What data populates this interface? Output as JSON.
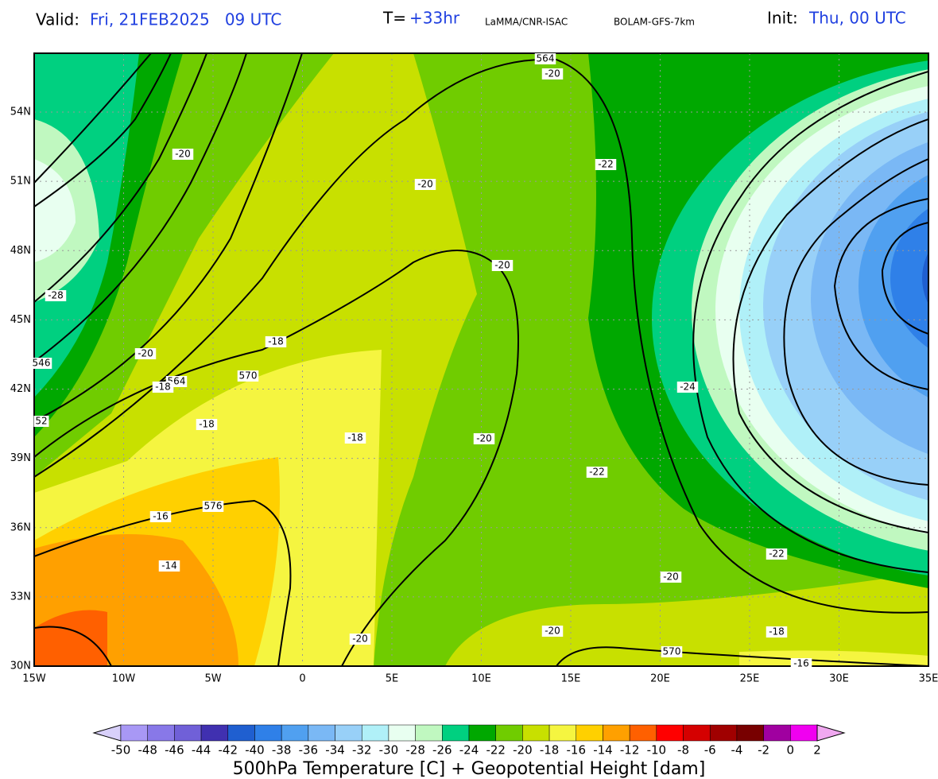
{
  "header": {
    "valid_label": "Valid:",
    "valid_value": "Fri, 21FEB2025   09 UTC",
    "t_label": "T=",
    "t_value": "+33hr",
    "source": "LaMMA/CNR-ISAC",
    "model": "BOLAM-GFS-7km",
    "init_label": "Init:",
    "init_value": "Thu, 00 UTC"
  },
  "map": {
    "lat_labels": [
      "54N",
      "51N",
      "48N",
      "45N",
      "42N",
      "39N",
      "36N",
      "33N",
      "30N"
    ],
    "lon_labels": [
      "15W",
      "10W",
      "5W",
      "0",
      "5E",
      "10E",
      "15E",
      "20E",
      "25E",
      "30E",
      "35E"
    ],
    "contour_labels": [
      "564",
      "-20",
      "-20",
      "-22",
      "-20",
      "-20",
      "-28",
      "-18",
      "-20",
      "546",
      "564",
      "-18",
      "570",
      "-24",
      "52",
      "-18",
      "-18",
      "-20",
      "-22",
      "576",
      "-16",
      "-14",
      "-22",
      "-20",
      "-18",
      "-20",
      "-20",
      "570",
      "-16"
    ]
  },
  "colorbar": {
    "ticks": [
      -50,
      -48,
      -46,
      -44,
      -42,
      -40,
      -38,
      -36,
      -34,
      -32,
      -30,
      -28,
      -26,
      -24,
      -22,
      -20,
      -18,
      -16,
      -14,
      -12,
      -10,
      -8,
      -6,
      -4,
      -2,
      0,
      2
    ],
    "colors": [
      "#d8d0fa",
      "#a898f5",
      "#8878e8",
      "#7060d8",
      "#4030b0",
      "#1f5fd0",
      "#2f80e8",
      "#50a0f0",
      "#7ab8f5",
      "#98d0f8",
      "#b0f0f8",
      "#e8fff0",
      "#c0f8c0",
      "#00d080",
      "#00a800",
      "#70cc00",
      "#c8e000",
      "#f5f540",
      "#ffd000",
      "#ffa000",
      "#ff6000",
      "#ff0000",
      "#d50000",
      "#a00000",
      "#780000",
      "#a000a0",
      "#f000f0",
      "#f0a8f0"
    ],
    "title": "500hPa Temperature [C] + Geopotential Height [dam]"
  }
}
